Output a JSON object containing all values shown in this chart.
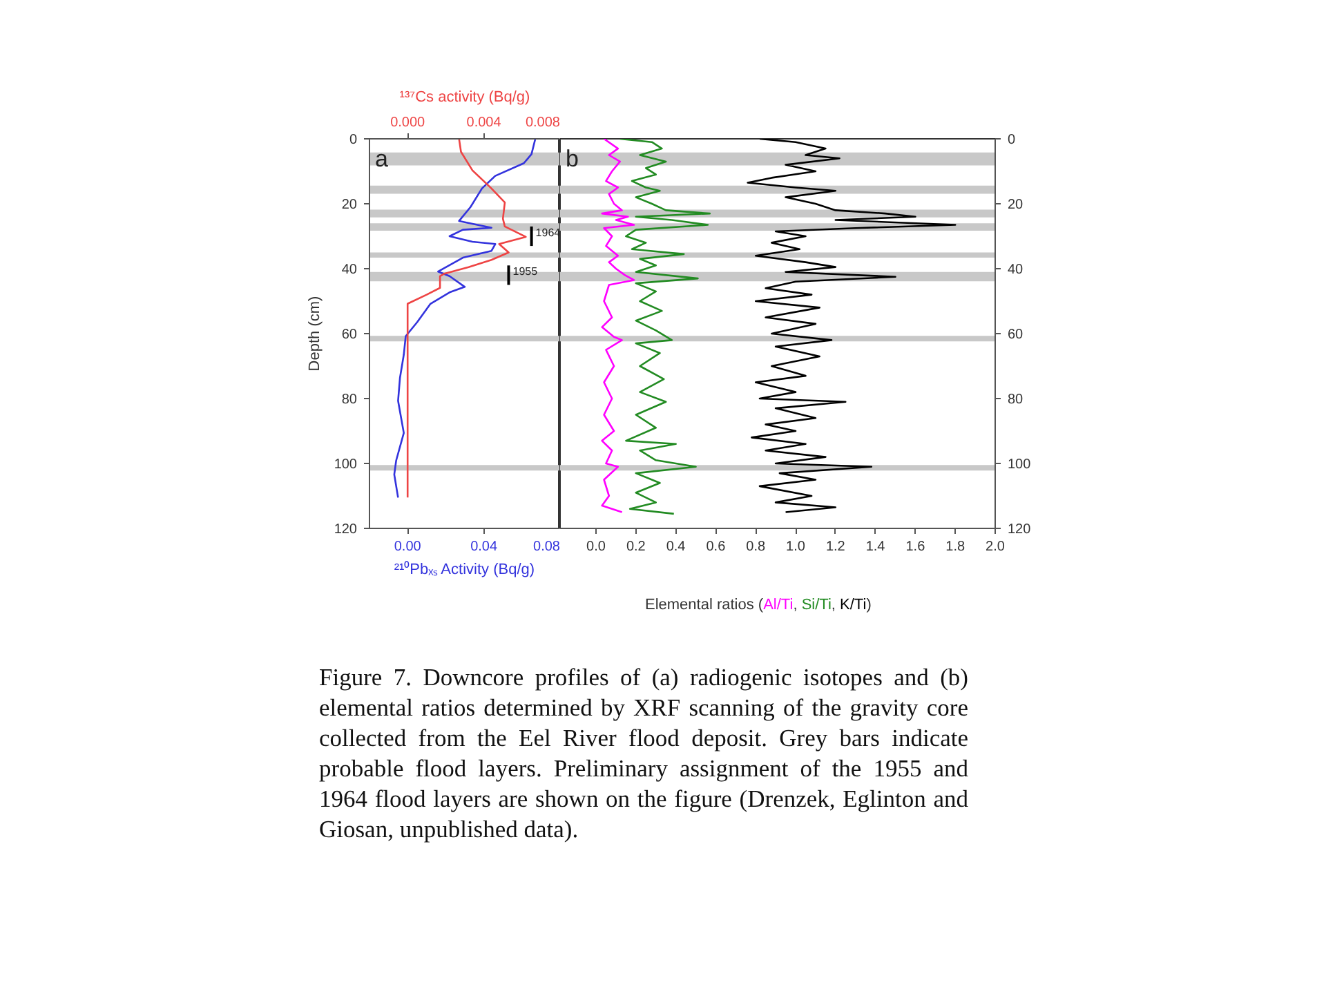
{
  "chart_data": [
    {
      "type": "line",
      "orientation": "horizontal",
      "xlabel": "²¹⁰Pbₓₛ Activity (Bq/g)",
      "x2label": "¹³⁷Cs activity (Bq/g)",
      "ylabel": "Depth (cm)",
      "xlim": [
        -0.02,
        0.08
      ],
      "xticks": [
        {
          "value": 0,
          "label": "0.00"
        },
        0.04,
        0.08
      ],
      "x2lim": [
        -0.002,
        0.008
      ],
      "x2ticks": [
        {
          "value": 0,
          "label": "0.000"
        },
        0.004,
        0.008
      ],
      "ylim": [
        120,
        0
      ],
      "yticks": [
        0,
        20,
        40,
        60,
        80,
        100,
        120
      ],
      "grid": false,
      "series": [
        {
          "color": "#3333dd",
          "x": [
            0,
            4.7,
            7.5,
            11.4,
            15.3,
            21,
            25.3,
            27.4,
            28,
            30,
            31.7,
            32.4,
            34.5,
            36.6,
            40.9,
            42.3,
            45.6,
            47.3,
            50.8,
            56.5,
            60.8,
            66.5,
            73.6,
            80.7,
            90.6,
            99.1,
            103.4,
            110.5
          ],
          "values": [
            0.067,
            0.065,
            0.061,
            0.046,
            0.039,
            0.033,
            0.027,
            0.044,
            0.029,
            0.022,
            0.034,
            0.046,
            0.044,
            0.029,
            0.016,
            0.022,
            0.03,
            0.022,
            0.012,
            0.005,
            -0.001,
            -0.002,
            -0.004,
            -0.005,
            -0.002,
            -0.006,
            -0.007,
            -0.005
          ]
        },
        {
          "color": "#ee4444",
          "axis": "x2",
          "x": [
            0,
            4,
            9.7,
            15.3,
            19.6,
            24.6,
            27,
            30.2,
            32.4,
            35,
            37.3,
            39.5,
            41.6,
            42.3,
            45.9,
            48,
            50.8,
            110.5
          ],
          "values": [
            0.0027,
            0.0028,
            0.0034,
            0.0044,
            0.0051,
            0.005,
            0.0051,
            0.0062,
            0.0048,
            0.0053,
            0.0044,
            0.0032,
            0.0019,
            0.0017,
            0.0017,
            0.001,
            0,
            0
          ]
        }
      ],
      "bands": [
        {
          "axis": "y",
          "from": 4.2,
          "to": 8.2,
          "color": "#c8c8c8"
        },
        {
          "axis": "y",
          "from": 14.4,
          "to": 16.9,
          "color": "#c8c8c8"
        },
        {
          "axis": "y",
          "from": 21.8,
          "to": 24.2,
          "color": "#c8c8c8"
        },
        {
          "axis": "y",
          "from": 26,
          "to": 28.3,
          "color": "#c8c8c8"
        },
        {
          "axis": "y",
          "from": 35,
          "to": 36.6,
          "color": "#c8c8c8"
        },
        {
          "axis": "y",
          "from": 41,
          "to": 43.9,
          "color": "#c8c8c8"
        },
        {
          "axis": "y",
          "from": 60.7,
          "to": 62.4,
          "color": "#c8c8c8"
        },
        {
          "axis": "y",
          "from": 100.5,
          "to": 102.2,
          "color": "#c8c8c8"
        }
      ],
      "annotations": [
        "a",
        {
          "text": "1964",
          "x": 0.065,
          "y": 30
        },
        {
          "text": "1955",
          "x": 0.053,
          "y": 42
        }
      ]
    },
    {
      "type": "line",
      "orientation": "horizontal",
      "xlabel": "Elemental ratios (Al/Ti, Si/Ti, K/Ti)",
      "xlim": [
        -0.18,
        2.0
      ],
      "xticks": [
        {
          "value": 0,
          "label": "0.0"
        },
        0.2,
        0.4,
        0.6,
        0.8,
        {
          "value": 1,
          "label": "1.0"
        },
        1.2,
        1.4,
        1.6,
        1.8,
        {
          "value": 2,
          "label": "2.0"
        }
      ],
      "ylim": [
        120,
        0
      ],
      "yticks": [
        0,
        20,
        40,
        60,
        80,
        100,
        120
      ],
      "grid": false,
      "series": [
        {
          "color": "#ff00ff",
          "x": [
            0,
            3,
            5,
            7,
            10,
            13,
            15,
            17,
            20,
            22,
            23,
            24,
            25,
            26.5,
            27.5,
            30,
            33,
            36,
            38,
            40,
            42,
            43.5,
            45,
            50,
            55,
            58,
            61,
            62,
            65,
            70,
            75,
            80,
            85,
            90,
            93,
            96,
            100,
            101,
            105,
            110,
            113,
            115
          ],
          "values": [
            0.04,
            0.11,
            0.065,
            0.12,
            0.08,
            0.05,
            0.11,
            0.065,
            0.09,
            0.13,
            0.03,
            0.16,
            0.1,
            0.19,
            0.04,
            0.08,
            0.05,
            0.11,
            0.065,
            0.1,
            0.145,
            0.19,
            0.065,
            0.04,
            0.08,
            0.03,
            0.09,
            0.13,
            0.05,
            0.09,
            0.04,
            0.08,
            0.04,
            0.09,
            0.03,
            0.08,
            0.05,
            0.11,
            0.04,
            0.065,
            0.03,
            0.13
          ]
        },
        {
          "color": "#228b22",
          "x": [
            0,
            1,
            3,
            5,
            7,
            9,
            11,
            13,
            15,
            16,
            18,
            20,
            22,
            23,
            24,
            25,
            26.5,
            28,
            30,
            32,
            34,
            35.5,
            37,
            39,
            41,
            43,
            44.5,
            47,
            50,
            53,
            56,
            59,
            62,
            63,
            66,
            70,
            74,
            78,
            81,
            85,
            89,
            93,
            94,
            96,
            99,
            101,
            103,
            106,
            109,
            112,
            114,
            115.5
          ],
          "values": [
            0.12,
            0.28,
            0.33,
            0.22,
            0.35,
            0.25,
            0.3,
            0.18,
            0.25,
            0.32,
            0.2,
            0.28,
            0.35,
            0.57,
            0.2,
            0.38,
            0.56,
            0.2,
            0.15,
            0.25,
            0.18,
            0.44,
            0.22,
            0.3,
            0.2,
            0.51,
            0.2,
            0.3,
            0.22,
            0.33,
            0.2,
            0.3,
            0.38,
            0.2,
            0.32,
            0.22,
            0.34,
            0.22,
            0.35,
            0.2,
            0.3,
            0.15,
            0.4,
            0.22,
            0.3,
            0.5,
            0.2,
            0.32,
            0.2,
            0.3,
            0.17,
            0.39
          ]
        },
        {
          "color": "#000000",
          "x": [
            0,
            1,
            3,
            5,
            6,
            8,
            10,
            12,
            13.5,
            15,
            16,
            18,
            20,
            22,
            23,
            24,
            25,
            26.5,
            27.5,
            28.5,
            30,
            32,
            34,
            36,
            38,
            39.5,
            41,
            42.5,
            44,
            46,
            48,
            50,
            52,
            55,
            57,
            60,
            62,
            64,
            67,
            70,
            73,
            75,
            78,
            80,
            81,
            83,
            86,
            88,
            90,
            92,
            94,
            96,
            98,
            100,
            101,
            103,
            105,
            107,
            110,
            112,
            113.5,
            115
          ],
          "values": [
            0.82,
            1.0,
            1.15,
            1.05,
            1.22,
            0.95,
            1.1,
            0.88,
            0.76,
            1.0,
            1.2,
            0.95,
            1.1,
            1.2,
            1.45,
            1.6,
            1.2,
            1.8,
            1.3,
            0.9,
            1.05,
            0.88,
            1.02,
            0.8,
            1.05,
            1.2,
            0.95,
            1.5,
            1.0,
            0.85,
            1.08,
            0.8,
            1.12,
            0.85,
            1.1,
            0.88,
            1.18,
            0.9,
            1.12,
            0.88,
            1.05,
            0.8,
            1.0,
            0.82,
            1.25,
            0.9,
            1.1,
            0.85,
            1.0,
            0.78,
            1.05,
            0.85,
            1.15,
            0.9,
            1.38,
            0.92,
            1.1,
            0.82,
            1.08,
            0.9,
            1.2,
            0.95
          ]
        }
      ],
      "bands": [
        {
          "axis": "y",
          "from": 4.2,
          "to": 8.2,
          "color": "#c8c8c8"
        },
        {
          "axis": "y",
          "from": 14.4,
          "to": 16.9,
          "color": "#c8c8c8"
        },
        {
          "axis": "y",
          "from": 21.8,
          "to": 24.2,
          "color": "#c8c8c8"
        },
        {
          "axis": "y",
          "from": 26,
          "to": 28.3,
          "color": "#c8c8c8"
        },
        {
          "axis": "y",
          "from": 35,
          "to": 36.6,
          "color": "#c8c8c8"
        },
        {
          "axis": "y",
          "from": 41,
          "to": 43.9,
          "color": "#c8c8c8"
        },
        {
          "axis": "y",
          "from": 60.7,
          "to": 62.4,
          "color": "#c8c8c8"
        },
        {
          "axis": "y",
          "from": 100.5,
          "to": 102.2,
          "color": "#c8c8c8"
        }
      ],
      "annotations": [
        "b",
        "Figure 7. Downcore profiles of (a) radiogenic isotopes and (b) elemental ratios determined by XRF scanning of the gravity core collected from the Eel River flood deposit. Grey bars indicate probable flood layers. Preliminary assignment of the 1955 and 1964 flood layers are shown on the figure (Drenzek, Eglinton and Giosan, unpublished data)."
      ]
    }
  ]
}
